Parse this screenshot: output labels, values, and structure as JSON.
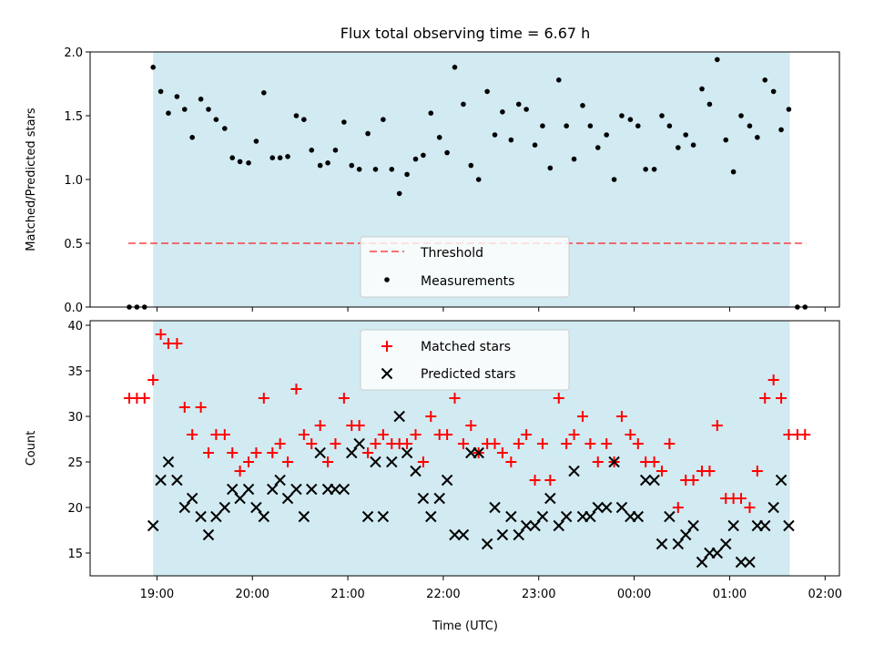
{
  "title": "Flux total observing time = 6.67 h",
  "xlabel": "Time (UTC)",
  "colors": {
    "shade": "#add8e6",
    "threshold": "#ff0000",
    "measurements": "#000000",
    "matched": "#ff0000",
    "predicted": "#000000"
  },
  "chart_data": [
    {
      "type": "scatter",
      "ylabel": "Matched/Predicted stars",
      "ylim": [
        0,
        2.0
      ],
      "yticks": [
        0.0,
        0.5,
        1.0,
        1.5,
        2.0
      ],
      "ytick_labels": [
        "0.0",
        "0.5",
        "1.0",
        "1.5",
        "2.0"
      ],
      "grid": false,
      "legend_location": "lower center",
      "legend": [
        "Threshold",
        "Measurements"
      ],
      "observing_window_hours": [
        18.96,
        25.63
      ],
      "threshold": {
        "name": "Threshold",
        "value": 0.5,
        "x_range": [
          18.7,
          25.8
        ]
      },
      "series": [
        {
          "name": "Measurements",
          "x": [
            18.71,
            18.79,
            18.87,
            18.96,
            19.04,
            19.12,
            19.21,
            19.29,
            19.37,
            19.46,
            19.54,
            19.62,
            19.71,
            19.79,
            19.87,
            19.96,
            20.04,
            20.12,
            20.21,
            20.29,
            20.37,
            20.46,
            20.54,
            20.62,
            20.71,
            20.79,
            20.87,
            20.96,
            21.04,
            21.12,
            21.21,
            21.29,
            21.37,
            21.46,
            21.54,
            21.62,
            21.71,
            21.79,
            21.87,
            21.96,
            22.04,
            22.12,
            22.21,
            22.29,
            22.37,
            22.46,
            22.54,
            22.62,
            22.71,
            22.79,
            22.87,
            22.96,
            23.04,
            23.12,
            23.21,
            23.29,
            23.37,
            23.46,
            23.54,
            23.62,
            23.71,
            23.79,
            23.87,
            23.96,
            24.04,
            24.12,
            24.21,
            24.29,
            24.37,
            24.46,
            24.54,
            24.62,
            24.71,
            24.79,
            24.87,
            24.96,
            25.04,
            25.12,
            25.21,
            25.29,
            25.37,
            25.46,
            25.54,
            25.62,
            25.71,
            25.79
          ],
          "y": [
            0.0,
            0.0,
            0.0,
            1.88,
            1.69,
            1.52,
            1.65,
            1.55,
            1.33,
            1.63,
            1.55,
            1.47,
            1.4,
            1.17,
            1.14,
            1.13,
            1.3,
            1.68,
            1.17,
            1.17,
            1.18,
            1.5,
            1.47,
            1.23,
            1.11,
            1.13,
            1.23,
            1.45,
            1.11,
            1.08,
            1.36,
            1.08,
            1.47,
            1.08,
            0.89,
            1.04,
            1.16,
            1.19,
            1.52,
            1.33,
            1.21,
            1.88,
            1.59,
            1.11,
            1.0,
            1.69,
            1.35,
            1.53,
            1.31,
            1.59,
            1.55,
            1.27,
            1.42,
            1.09,
            1.78,
            1.42,
            1.16,
            1.58,
            1.42,
            1.25,
            1.35,
            1.0,
            1.5,
            1.47,
            1.42,
            1.08,
            1.08,
            1.5,
            1.42,
            1.25,
            1.35,
            1.27,
            1.71,
            1.59,
            1.94,
            1.31,
            1.06,
            1.5,
            1.42,
            1.33,
            1.78,
            1.69,
            1.39,
            1.55,
            0.0,
            0.0
          ]
        }
      ]
    },
    {
      "type": "scatter",
      "ylabel": "Count",
      "ylim": [
        12.5,
        40.5
      ],
      "yticks": [
        15,
        20,
        25,
        30,
        35,
        40
      ],
      "ytick_labels": [
        "15",
        "20",
        "25",
        "30",
        "35",
        "40"
      ],
      "xlim": [
        18.3,
        26.15
      ],
      "xticks": [
        19,
        20,
        21,
        22,
        23,
        24,
        25,
        26
      ],
      "xtick_labels": [
        "19:00",
        "20:00",
        "21:00",
        "22:00",
        "23:00",
        "00:00",
        "01:00",
        "02:00"
      ],
      "grid": false,
      "legend_location": "upper center",
      "legend": [
        "Matched stars",
        "Predicted stars"
      ],
      "observing_window_hours": [
        18.96,
        25.63
      ],
      "series": [
        {
          "name": "Matched stars",
          "x": [
            18.71,
            18.79,
            18.87,
            18.96,
            19.04,
            19.12,
            19.21,
            19.29,
            19.37,
            19.46,
            19.54,
            19.62,
            19.71,
            19.79,
            19.87,
            19.96,
            20.04,
            20.12,
            20.21,
            20.29,
            20.37,
            20.46,
            20.54,
            20.62,
            20.71,
            20.79,
            20.87,
            20.96,
            21.04,
            21.12,
            21.21,
            21.29,
            21.37,
            21.46,
            21.54,
            21.62,
            21.71,
            21.79,
            21.87,
            21.96,
            22.04,
            22.12,
            22.21,
            22.29,
            22.37,
            22.46,
            22.54,
            22.62,
            22.71,
            22.79,
            22.87,
            22.96,
            23.04,
            23.12,
            23.21,
            23.29,
            23.37,
            23.46,
            23.54,
            23.62,
            23.71,
            23.79,
            23.87,
            23.96,
            24.04,
            24.12,
            24.21,
            24.29,
            24.37,
            24.46,
            24.54,
            24.62,
            24.71,
            24.79,
            24.87,
            24.96,
            25.04,
            25.12,
            25.21,
            25.29,
            25.37,
            25.46,
            25.54,
            25.62,
            25.71,
            25.79
          ],
          "y": [
            32,
            32,
            32,
            34,
            39,
            38,
            38,
            31,
            28,
            31,
            26,
            28,
            28,
            26,
            24,
            25,
            26,
            32,
            26,
            27,
            25,
            33,
            28,
            27,
            29,
            25,
            27,
            32,
            29,
            29,
            26,
            27,
            28,
            27,
            27,
            27,
            28,
            25,
            30,
            28,
            28,
            32,
            27,
            29,
            26,
            27,
            27,
            26,
            25,
            27,
            28,
            23,
            27,
            23,
            32,
            27,
            28,
            30,
            27,
            25,
            27,
            25,
            30,
            28,
            27,
            25,
            25,
            24,
            27,
            20,
            23,
            23,
            24,
            24,
            29,
            21,
            21,
            21,
            20,
            24,
            32,
            34,
            32,
            28,
            28,
            28
          ]
        },
        {
          "name": "Predicted stars",
          "x": [
            18.96,
            19.04,
            19.12,
            19.21,
            19.29,
            19.37,
            19.46,
            19.54,
            19.62,
            19.71,
            19.79,
            19.87,
            19.96,
            20.04,
            20.12,
            20.21,
            20.29,
            20.37,
            20.46,
            20.54,
            20.62,
            20.71,
            20.79,
            20.87,
            20.96,
            21.04,
            21.12,
            21.21,
            21.29,
            21.37,
            21.46,
            21.54,
            21.62,
            21.71,
            21.79,
            21.87,
            21.96,
            22.04,
            22.12,
            22.21,
            22.29,
            22.37,
            22.46,
            22.54,
            22.62,
            22.71,
            22.79,
            22.87,
            22.96,
            23.04,
            23.12,
            23.21,
            23.29,
            23.37,
            23.46,
            23.54,
            23.62,
            23.71,
            23.79,
            23.87,
            23.96,
            24.04,
            24.12,
            24.21,
            24.29,
            24.37,
            24.46,
            24.54,
            24.62,
            24.71,
            24.79,
            24.87,
            24.96,
            25.04,
            25.12,
            25.21,
            25.29,
            25.37,
            25.46,
            25.54,
            25.62
          ],
          "y": [
            18,
            23,
            25,
            23,
            20,
            21,
            19,
            17,
            19,
            20,
            22,
            21,
            22,
            20,
            19,
            22,
            23,
            21,
            22,
            19,
            22,
            26,
            22,
            22,
            22,
            26,
            27,
            19,
            25,
            19,
            25,
            30,
            26,
            24,
            21,
            19,
            21,
            23,
            17,
            17,
            26,
            26,
            16,
            20,
            17,
            19,
            17,
            18,
            18,
            19,
            21,
            18,
            19,
            24,
            19,
            19,
            20,
            20,
            25,
            20,
            19,
            19,
            23,
            23,
            16,
            19,
            16,
            17,
            18,
            14,
            15,
            15,
            16,
            18,
            14,
            14,
            18,
            18,
            20,
            23,
            18
          ]
        }
      ]
    }
  ]
}
